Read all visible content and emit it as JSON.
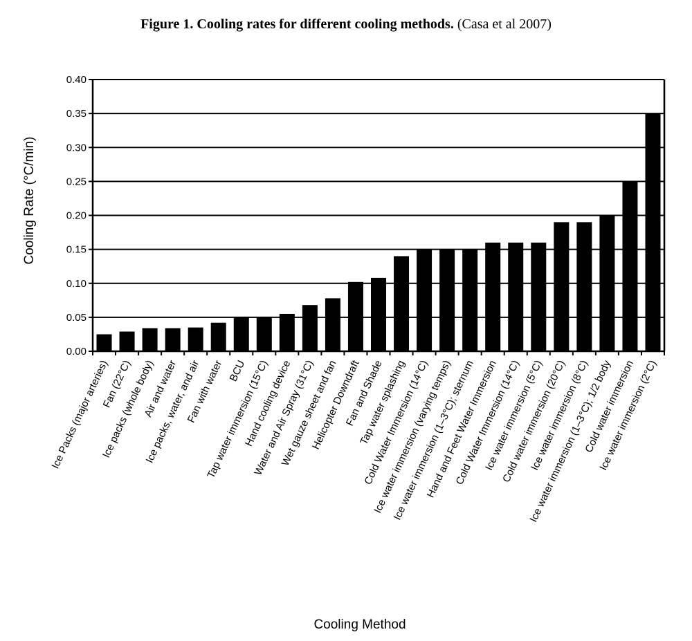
{
  "title": {
    "bold": "Figure 1. Cooling rates for different cooling methods.",
    "citation": "(Casa et al 2007)"
  },
  "chart_data": {
    "type": "bar",
    "xlabel": "Cooling Method",
    "ylabel": "Cooling Rate (°C/min)",
    "ylim": [
      0,
      0.4
    ],
    "yticks": [
      "0.00",
      "0.05",
      "0.10",
      "0.15",
      "0.20",
      "0.25",
      "0.30",
      "0.35",
      "0.40"
    ],
    "grid": true,
    "bar_color": "#000000",
    "categories": [
      "Ice Packs (major arteries)",
      "Fan (22°C)",
      "Ice packs (whole body)",
      "Air and water",
      "Ice packs, water, and air",
      "Fan with water",
      "BCU",
      "Tap water immersion (15°C)",
      "Hand cooling device",
      "Water and Air Spray (31°C)",
      "Wet gauze sheet and fan",
      "Helicopter Downdraft",
      "Fan and Shade",
      "Tap water splashing",
      "Cold Water Immersion (14°C)",
      "Ice water immersion (varying temps)",
      "Ice water immersion (1–3°C); sternum",
      "Hand and Feet Water Immersion",
      "Cold Water Immersion (14°C)",
      "Ice water immersion (5°C)",
      "Cold water immersion (20°C)",
      "Ice water immersion (8°C)",
      "Ice water immersion (1–3°C); 1/2 body",
      "Cold water immersion",
      "Ice water immersion (2°C)"
    ],
    "values": [
      0.025,
      0.029,
      0.034,
      0.034,
      0.035,
      0.042,
      0.05,
      0.05,
      0.055,
      0.068,
      0.078,
      0.102,
      0.108,
      0.14,
      0.15,
      0.15,
      0.15,
      0.16,
      0.16,
      0.16,
      0.19,
      0.19,
      0.2,
      0.25,
      0.35
    ]
  }
}
